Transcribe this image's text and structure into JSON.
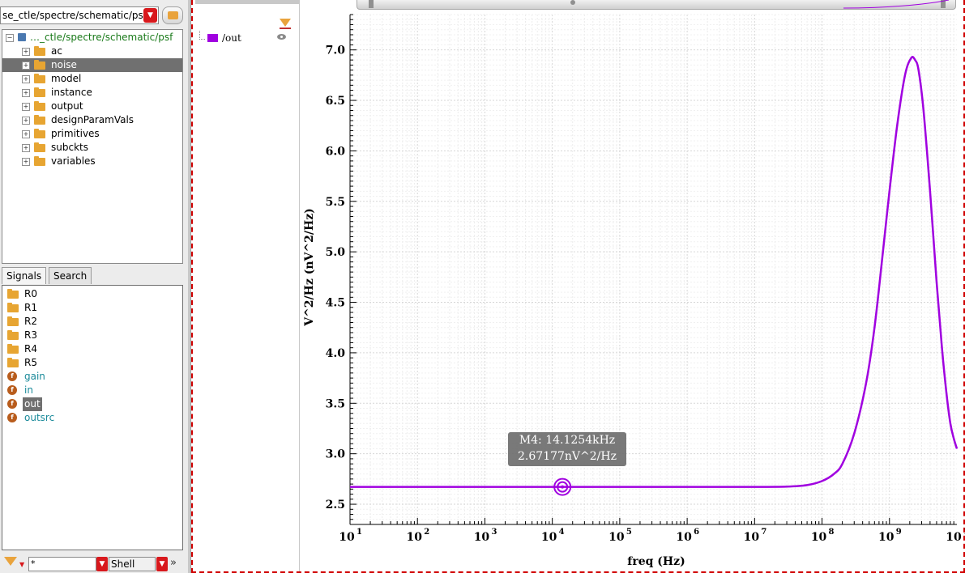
{
  "browser": {
    "path_combo": "se_ctle/spectre/schematic/psf",
    "tree_root": "…_ctle/spectre/schematic/psf",
    "tree_items": [
      {
        "label": "ac",
        "selected": false
      },
      {
        "label": "noise",
        "selected": true
      },
      {
        "label": "model",
        "selected": false
      },
      {
        "label": "instance",
        "selected": false
      },
      {
        "label": "output",
        "selected": false
      },
      {
        "label": "designParamVals",
        "selected": false
      },
      {
        "label": "primitives",
        "selected": false
      },
      {
        "label": "subckts",
        "selected": false
      },
      {
        "label": "variables",
        "selected": false
      }
    ],
    "tabs": [
      "Signals",
      "Search"
    ],
    "folders": [
      "R0",
      "R1",
      "R2",
      "R3",
      "R4",
      "R5"
    ],
    "signals": [
      {
        "label": "gain",
        "selected": false
      },
      {
        "label": "in",
        "selected": false
      },
      {
        "label": "out",
        "selected": true
      },
      {
        "label": "outsrc",
        "selected": false
      }
    ],
    "filter_value": "*",
    "shell_label": "Shell"
  },
  "legend": {
    "trace_label": "/out",
    "trace_color": "#a000e0"
  },
  "marker": {
    "line1": "M4: 14.1254kHz",
    "line2": "2.67177nV^2/Hz"
  },
  "chart_data": {
    "type": "line",
    "xscale": "log",
    "xlabel": "freq (Hz)",
    "ylabel": "V^2/Hz (nV^2/Hz)",
    "xlim": [
      10,
      10000000000
    ],
    "ylim": [
      2.3,
      7.35
    ],
    "x_tick_exponents": [
      1,
      2,
      3,
      4,
      5,
      6,
      7,
      8,
      9,
      10
    ],
    "x_tick_labels": [
      "10",
      "10",
      "10",
      "10",
      "10",
      "10",
      "10",
      "10",
      "10",
      "10"
    ],
    "y_ticks": [
      2.5,
      3.0,
      3.5,
      4.0,
      4.5,
      5.0,
      5.5,
      6.0,
      6.5,
      7.0
    ],
    "y_tick_labels": [
      "2.5",
      "3.0",
      "3.5",
      "4.0",
      "4.5",
      "5.0",
      "5.5",
      "6.0",
      "6.5",
      "7.0"
    ],
    "grid": true,
    "series": [
      {
        "name": "/out",
        "color": "#a000e0",
        "x": [
          10,
          100,
          1000,
          10000,
          100000,
          1000000,
          10000000,
          30000000,
          60000000,
          100000000,
          150000000,
          200000000,
          300000000,
          450000000,
          600000000,
          800000000,
          1000000000,
          1300000000,
          1700000000,
          2100000000,
          2400000000,
          2700000000,
          3200000000,
          4000000000,
          5000000000,
          6000000000,
          7000000000,
          8000000000,
          9000000000,
          10000000000
        ],
        "y": [
          2.672,
          2.672,
          2.672,
          2.672,
          2.672,
          2.672,
          2.672,
          2.675,
          2.69,
          2.73,
          2.8,
          2.9,
          3.2,
          3.7,
          4.25,
          5.0,
          5.6,
          6.25,
          6.75,
          6.92,
          6.9,
          6.8,
          6.4,
          5.6,
          4.7,
          4.05,
          3.6,
          3.3,
          3.15,
          3.05
        ]
      }
    ],
    "marker_point": {
      "x": 14125.4,
      "y": 2.67177
    }
  }
}
